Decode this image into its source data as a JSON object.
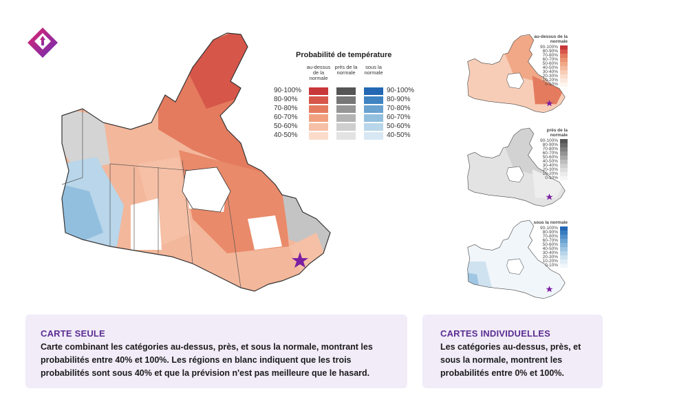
{
  "legend": {
    "title": "Probabilité de température",
    "columns": [
      {
        "label": "au-dessus de la normale"
      },
      {
        "label": "près de la normale"
      },
      {
        "label": "sous la normale"
      }
    ],
    "ranges": [
      "90-100%",
      "80-90%",
      "70-80%",
      "60-70%",
      "50-60%",
      "40-50%"
    ],
    "colors": {
      "above": [
        "#c8373a",
        "#d6564a",
        "#e47b5f",
        "#f0a07f",
        "#f6c0a6",
        "#fbdccb"
      ],
      "near": [
        "#555555",
        "#777777",
        "#969696",
        "#b3b3b3",
        "#cfcfcf",
        "#e3e3e3"
      ],
      "below": [
        "#2468b4",
        "#3f83c2",
        "#6aa2d0",
        "#93bfdf",
        "#b9d6ea",
        "#d7e7f3"
      ]
    }
  },
  "small_maps": [
    {
      "title": "au-dessus de la normale",
      "ranges": [
        "90-100%",
        "80-90%",
        "70-80%",
        "60-70%",
        "50-60%",
        "40-50%",
        "30-40%",
        "20-30%",
        "10-20%",
        "0-10%"
      ],
      "colors": [
        "#c8373a",
        "#d6564a",
        "#e47b5f",
        "#ec9273",
        "#f0a887",
        "#f5bb9f",
        "#f8cdb7",
        "#fadccb",
        "#fce9df",
        "#fef5ef"
      ]
    },
    {
      "title": "près de la normale",
      "ranges": [
        "90-100%",
        "80-90%",
        "70-80%",
        "60-70%",
        "50-60%",
        "40-50%",
        "30-40%",
        "20-30%",
        "10-20%",
        "0-10%"
      ],
      "colors": [
        "#555555",
        "#6a6a6a",
        "#7f7f7f",
        "#949494",
        "#a9a9a9",
        "#bdbdbd",
        "#cfcfcf",
        "#dedede",
        "#ebebeb",
        "#f6f6f6"
      ]
    },
    {
      "title": "sous la normale",
      "ranges": [
        "90-100%",
        "80-90%",
        "70-80%",
        "60-70%",
        "50-60%",
        "40-50%",
        "30-40%",
        "20-30%",
        "10-20%",
        "0-10%"
      ],
      "colors": [
        "#2468b4",
        "#3a7cbf",
        "#5390c9",
        "#6ba3d2",
        "#85b5db",
        "#9fc6e3",
        "#b8d5ea",
        "#cee2f0",
        "#e1edf6",
        "#f1f6fb"
      ]
    }
  ],
  "cards": {
    "single": {
      "heading": "CARTE SEULE",
      "body": "Carte combinant les catégories au-dessus, près, et sous la normale, montrant les probabilités entre 40% et 100%. Les régions en blanc indiquent que les trois probabilités sont sous 40% et que la prévision n'est pas meilleure que le hasard."
    },
    "individual": {
      "heading": "CARTES INDIVIDUELLES",
      "body": "Les catégories au-dessus, près, et sous la normale, montrent les probabilités entre 0% et 100%."
    }
  },
  "colors": {
    "accent": "#5b2d91",
    "logo_gradient": [
      "#e0246e",
      "#6b2fb4"
    ],
    "marker": "#7b1fa2",
    "card_bg": "#f1ecf8"
  }
}
